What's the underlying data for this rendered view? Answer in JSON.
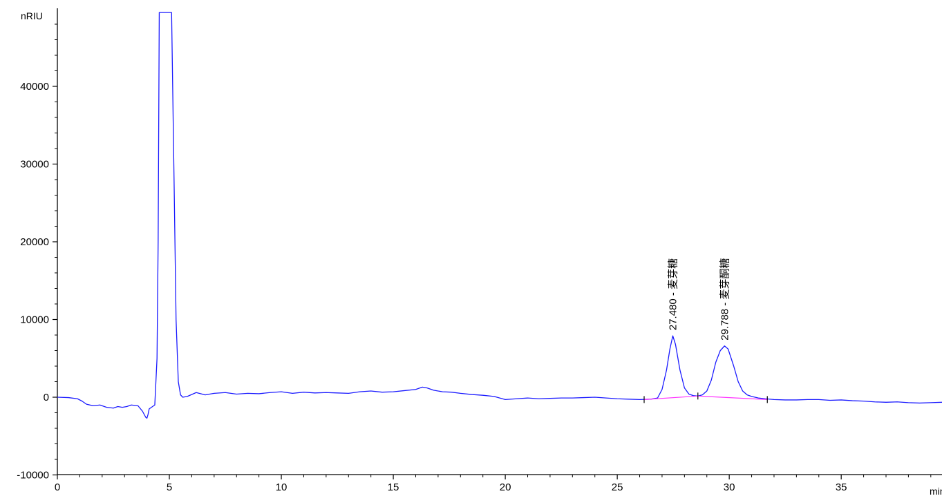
{
  "chart_data": {
    "type": "line",
    "title": "",
    "xlabel": "min",
    "ylabel": "nRIU",
    "xlim": [
      0,
      39.5
    ],
    "ylim": [
      -10000,
      49500
    ],
    "x_ticks": [
      0,
      5,
      10,
      15,
      20,
      25,
      30,
      35
    ],
    "x_tick_labels": [
      "0",
      "5",
      "10",
      "15",
      "20",
      "25",
      "30",
      "35"
    ],
    "y_ticks": [
      -10000,
      0,
      10000,
      20000,
      30000,
      40000
    ],
    "y_tick_labels": [
      "-10000",
      "0",
      "10000",
      "20000",
      "30000",
      "40000"
    ],
    "grid": false,
    "colors": {
      "signal": "#1a1aff",
      "baseline": "#ff33ff",
      "axis": "#000000"
    },
    "series": [
      {
        "color": "#1a1aff",
        "x": [
          0.0,
          0.5,
          0.9,
          1.1,
          1.3,
          1.6,
          1.9,
          2.2,
          2.5,
          2.7,
          2.9,
          3.1,
          3.3,
          3.6,
          3.8,
          3.95,
          4.0,
          4.05,
          4.1,
          4.2,
          4.35,
          4.45,
          4.5,
          4.55,
          4.6,
          4.65,
          4.75,
          5.1,
          5.2,
          5.3,
          5.4,
          5.5,
          5.6,
          5.8,
          6.2,
          6.6,
          7.0,
          7.5,
          8.0,
          8.5,
          9.0,
          9.5,
          10.0,
          10.5,
          11.0,
          11.5,
          12.0,
          12.5,
          13.0,
          13.5,
          14.0,
          14.5,
          15.0,
          15.5,
          16.0,
          16.3,
          16.5,
          16.8,
          17.2,
          17.6,
          18.0,
          18.5,
          19.0,
          19.5,
          20.0,
          20.5,
          21.0,
          21.5,
          22.0,
          22.5,
          23.0,
          23.5,
          24.0,
          24.5,
          25.0,
          25.5,
          26.0,
          26.5,
          26.8,
          27.0,
          27.2,
          27.35,
          27.48,
          27.6,
          27.8,
          28.0,
          28.2,
          28.4,
          28.6,
          28.8,
          29.0,
          29.2,
          29.4,
          29.6,
          29.79,
          29.95,
          30.2,
          30.4,
          30.6,
          30.8,
          31.0,
          31.3,
          31.6,
          32.0,
          32.5,
          33.0,
          33.5,
          34.0,
          34.5,
          35.0,
          35.5,
          36.0,
          36.5,
          37.0,
          37.5,
          38.0,
          38.5,
          39.0,
          39.5
        ],
        "y": [
          0,
          -50,
          -200,
          -500,
          -900,
          -1100,
          -1000,
          -1300,
          -1400,
          -1200,
          -1300,
          -1200,
          -1000,
          -1100,
          -1800,
          -2600,
          -2700,
          -2200,
          -1500,
          -1300,
          -1000,
          5000,
          20000,
          49500,
          49500,
          49500,
          49500,
          49500,
          30000,
          10000,
          2000,
          300,
          0,
          100,
          600,
          300,
          500,
          600,
          400,
          500,
          450,
          600,
          700,
          500,
          650,
          550,
          600,
          550,
          500,
          700,
          800,
          650,
          700,
          850,
          1000,
          1300,
          1200,
          900,
          700,
          650,
          500,
          350,
          250,
          100,
          -300,
          -200,
          -100,
          -200,
          -150,
          -100,
          -100,
          -50,
          0,
          -100,
          -200,
          -250,
          -300,
          -250,
          -100,
          1000,
          3500,
          6200,
          7900,
          6800,
          3500,
          1200,
          400,
          200,
          150,
          300,
          800,
          2200,
          4500,
          6000,
          6600,
          6200,
          4000,
          2000,
          800,
          300,
          100,
          -100,
          -200,
          -300,
          -350,
          -350,
          -300,
          -300,
          -400,
          -350,
          -450,
          -500,
          -600,
          -650,
          -600,
          -700,
          -750,
          -700,
          -650
        ]
      },
      {
        "color": "#ff33ff",
        "x": [
          26.2,
          28.6,
          31.7
        ],
        "y": [
          -300,
          150,
          -300
        ]
      }
    ],
    "baseline_markers_x": [
      26.2,
      28.6,
      31.7
    ],
    "peak_labels": [
      {
        "x": 27.48,
        "y": 7900,
        "text": "27.480 - 麦芽糖"
      },
      {
        "x": 29.788,
        "y": 6600,
        "text": "29.788 - 麦芽酮糖"
      }
    ]
  }
}
